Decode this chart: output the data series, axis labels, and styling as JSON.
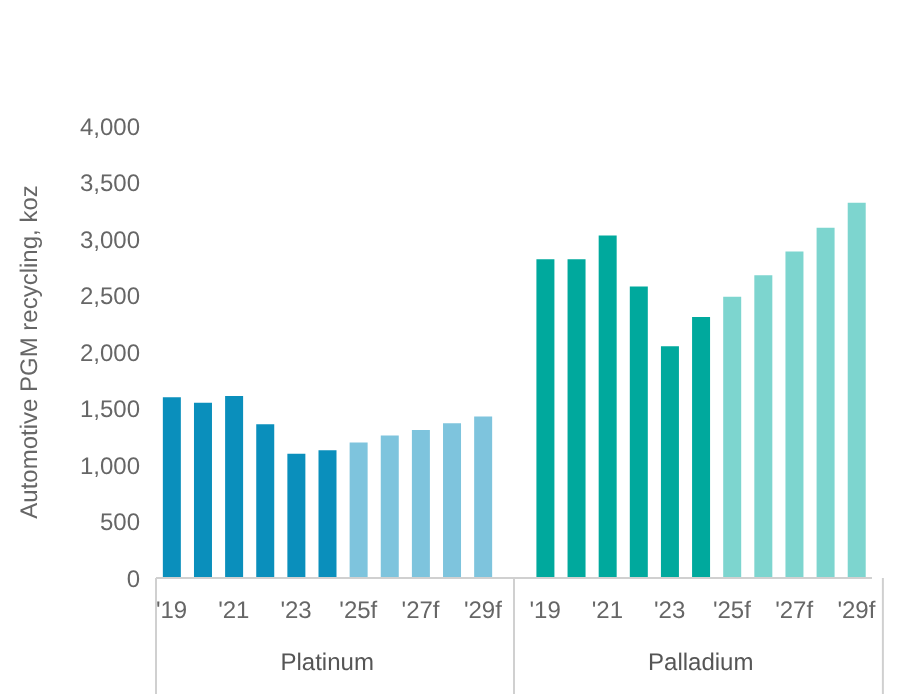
{
  "chart_data": {
    "type": "bar",
    "ylabel": "Automotive PGM recycling, koz",
    "categories": [
      "'19",
      null,
      "'21",
      null,
      "'23",
      null,
      "'25f",
      null,
      "'27f",
      null,
      "'29f",
      null,
      "'19",
      null,
      "'21",
      null,
      "'23",
      null,
      "'25f",
      null,
      "'27f",
      null,
      "'29f"
    ],
    "series": [
      {
        "name": "Platinum",
        "colors": [
          "#0a8fbc",
          "#0a8fbc",
          "#0a8fbc",
          "#0a8fbc",
          "#0a8fbc",
          "#0a8fbc",
          "#7ec4dd",
          "#7ec4dd",
          "#7ec4dd",
          "#7ec4dd",
          "#7ec4dd",
          null,
          null,
          null,
          null,
          null,
          null,
          null,
          null,
          null,
          null,
          null,
          null
        ],
        "values": [
          1600,
          1550,
          1610,
          1360,
          1100,
          1130,
          1200,
          1260,
          1310,
          1370,
          1430,
          null,
          null,
          null,
          null,
          null,
          null,
          null,
          null,
          null,
          null,
          null,
          null
        ]
      },
      {
        "name": "Palladium",
        "colors": [
          null,
          null,
          null,
          null,
          null,
          null,
          null,
          null,
          null,
          null,
          null,
          null,
          "#00a99d",
          "#00a99d",
          "#00a99d",
          "#00a99d",
          "#00a99d",
          "#00a99d",
          "#7dd5cf",
          "#7dd5cf",
          "#7dd5cf",
          "#7dd5cf",
          "#7dd5cf"
        ],
        "values": [
          null,
          null,
          null,
          null,
          null,
          null,
          null,
          null,
          null,
          null,
          null,
          null,
          2820,
          2820,
          3030,
          2580,
          2050,
          2310,
          2490,
          2680,
          2890,
          3100,
          3320
        ]
      }
    ],
    "ylim": [
      0,
      4000
    ],
    "yticks": [
      0,
      500,
      {
        "value": 1000,
        "label": "1,000"
      },
      {
        "value": 1500,
        "label": "1,500"
      },
      {
        "value": 2000,
        "label": "2,000"
      },
      {
        "value": 2500,
        "label": "2,500"
      },
      {
        "value": 3000,
        "label": "3,000"
      },
      {
        "value": 3500,
        "label": "3,500"
      },
      {
        "value": 4000,
        "label": "4,000"
      }
    ],
    "grid": false,
    "legend": false
  }
}
